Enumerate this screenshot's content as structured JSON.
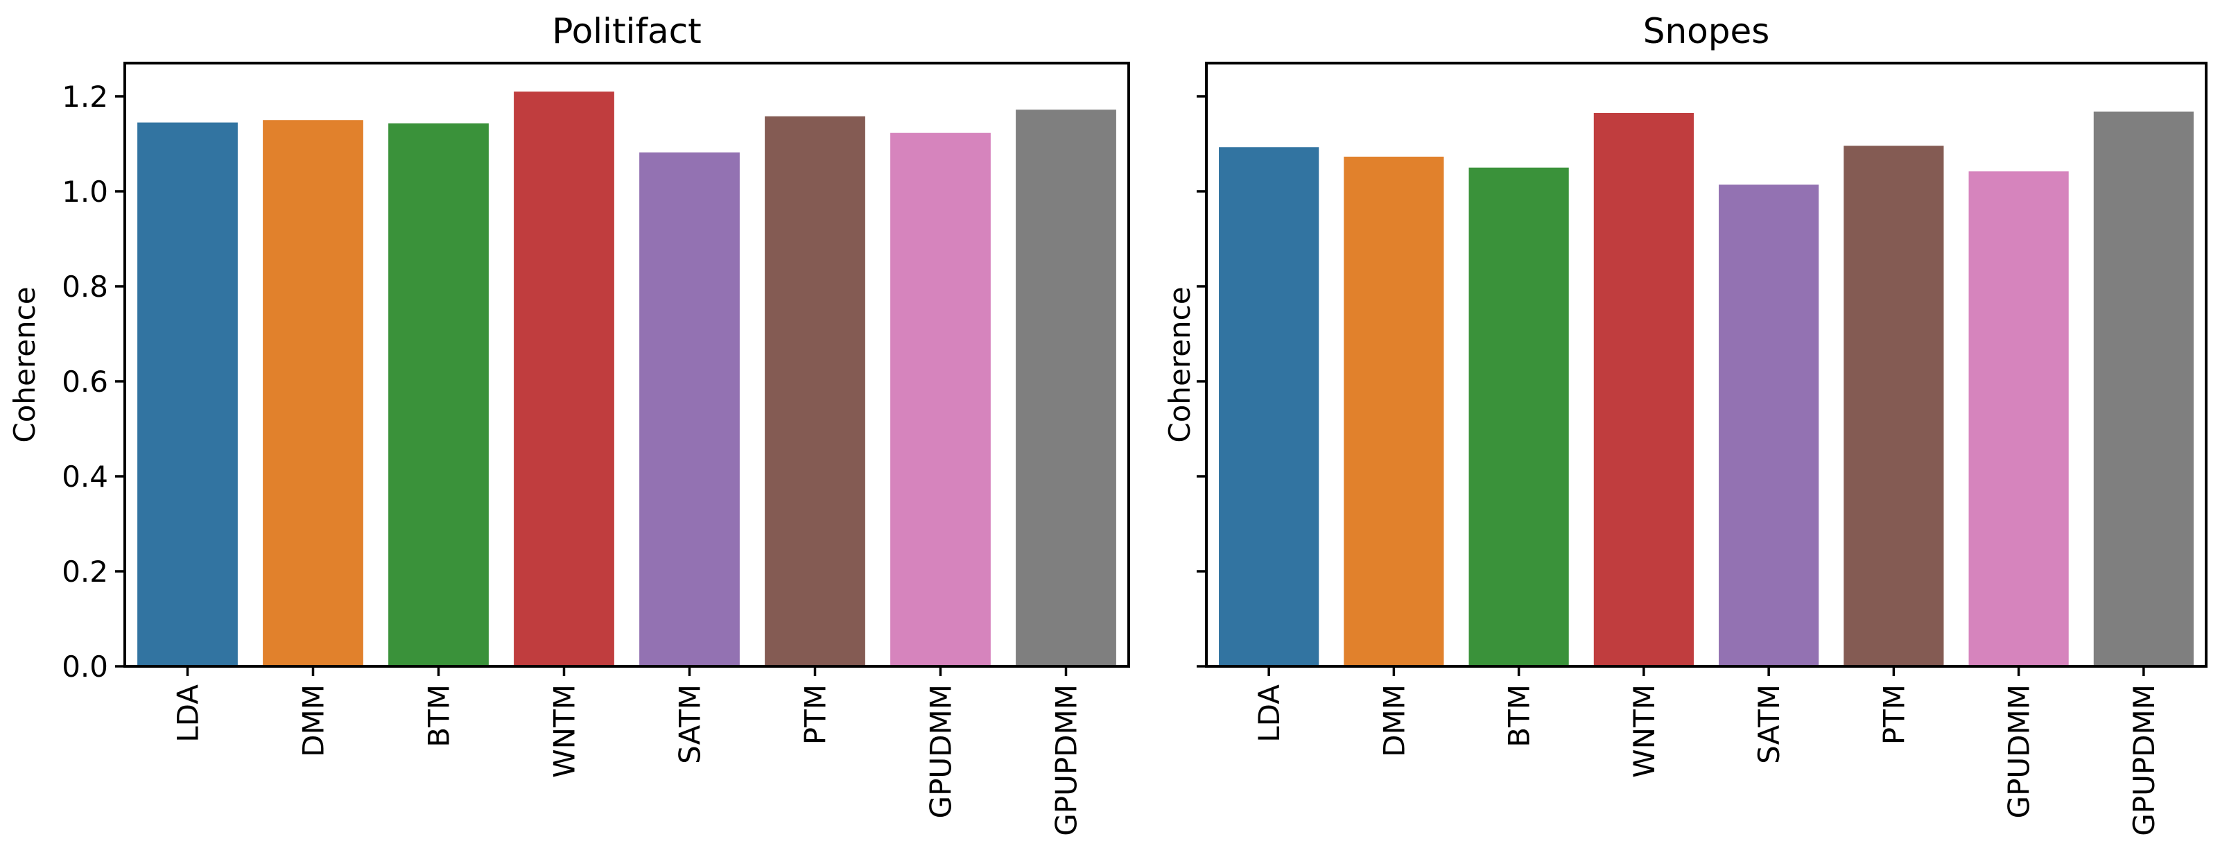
{
  "chart_data": [
    {
      "type": "bar",
      "title": "Politifact",
      "xlabel": "",
      "ylabel": "Coherence",
      "ylim": [
        0,
        1.27
      ],
      "yticks": [
        "0.0",
        "0.2",
        "0.4",
        "0.6",
        "0.8",
        "1.0",
        "1.2"
      ],
      "show_ytick_labels": true,
      "grid": false,
      "categories": [
        "LDA",
        "DMM",
        "BTM",
        "WNTM",
        "SATM",
        "PTM",
        "GPUDMM",
        "GPUPDMM"
      ],
      "values": [
        1.145,
        1.15,
        1.143,
        1.21,
        1.082,
        1.158,
        1.123,
        1.172
      ],
      "colors": [
        "#3274a1",
        "#e1812c",
        "#3a923a",
        "#c03d3e",
        "#9372b2",
        "#845b53",
        "#d684bd",
        "#7f7f7f"
      ]
    },
    {
      "type": "bar",
      "title": "Snopes",
      "xlabel": "",
      "ylabel": "Coherence",
      "ylim": [
        0,
        1.27
      ],
      "yticks": [
        "0.0",
        "0.2",
        "0.4",
        "0.6",
        "0.8",
        "1.0",
        "1.2"
      ],
      "show_ytick_labels": false,
      "grid": false,
      "categories": [
        "LDA",
        "DMM",
        "BTM",
        "WNTM",
        "SATM",
        "PTM",
        "GPUDMM",
        "GPUPDMM"
      ],
      "values": [
        1.093,
        1.073,
        1.05,
        1.165,
        1.014,
        1.096,
        1.042,
        1.168
      ],
      "colors": [
        "#3274a1",
        "#e1812c",
        "#3a923a",
        "#c03d3e",
        "#9372b2",
        "#845b53",
        "#d684bd",
        "#7f7f7f"
      ]
    }
  ]
}
